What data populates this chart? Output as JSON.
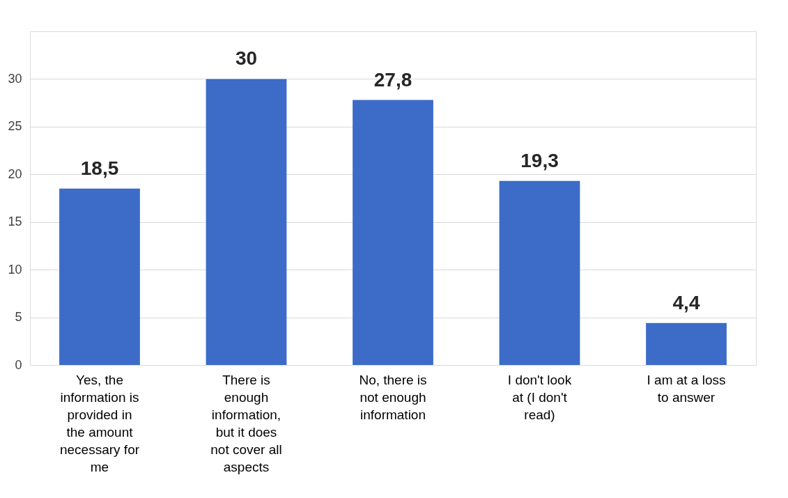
{
  "chart_data": {
    "type": "bar",
    "categories": [
      "Yes, the information is provided in the amount necessary for me",
      "There is enough information, but it does not cover all aspects",
      "No, there is not enough information",
      "I don't look at (I don't read)",
      "I am at a loss to answer"
    ],
    "values": [
      18.5,
      30,
      27.8,
      19.3,
      4.4
    ],
    "value_labels": [
      "18,5",
      "30",
      "27,8",
      "19,3",
      "4,4"
    ],
    "color": "#3c6cc8",
    "ylim": [
      0,
      35
    ],
    "yticks": [
      0,
      5,
      10,
      15,
      20,
      25,
      30,
      {
        "value": 35,
        "label": null
      }
    ],
    "grid": "y"
  }
}
